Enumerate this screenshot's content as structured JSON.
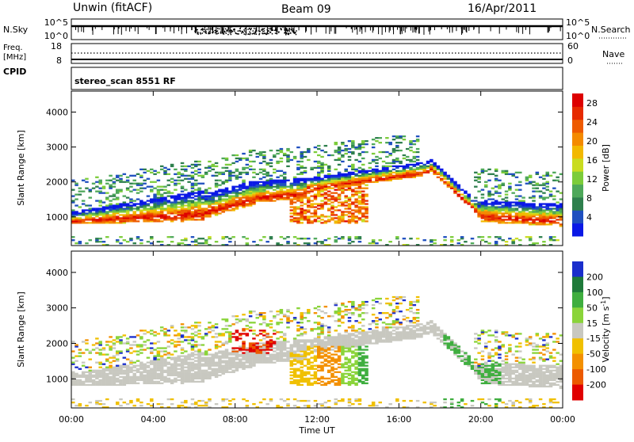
{
  "header": {
    "station": "Unwin (fitACF)",
    "beam": "Beam 09",
    "date": "16/Apr/2011"
  },
  "panels": {
    "nsky": {
      "label": "N.Sky",
      "left_ticks": [
        "10^5",
        "10^0"
      ],
      "right_ticks": [
        "10^5",
        "10^0"
      ],
      "right_label": "N.Search"
    },
    "freq": {
      "label_line1": "Freq.",
      "label_line2": "[MHz]",
      "left_ticks": [
        "18",
        "8"
      ],
      "right_ticks": [
        "60",
        "0"
      ],
      "right_label": "Nave"
    },
    "cpid": {
      "label": "CPID",
      "value": "stereo_scan 8551 RF"
    }
  },
  "chart_data": [
    {
      "type": "heatmap",
      "name": "power",
      "xlabel": "",
      "ylabel": "Slant Range [km]",
      "x_ticks": [],
      "y_ticks": [
        "1000",
        "2000",
        "3000",
        "4000"
      ],
      "ylim": [
        180,
        4600
      ],
      "xlim_hours": [
        0,
        24
      ],
      "colorbar": {
        "label": "Power [dB]",
        "ticks": [
          "4",
          "8",
          "12",
          "16",
          "20",
          "24",
          "28"
        ],
        "range": [
          0,
          30
        ],
        "colors": [
          "#0a18e6",
          "#1f4fbf",
          "#2e7f4d",
          "#4ea85a",
          "#7ccc3a",
          "#c9dc20",
          "#f2b800",
          "#f48a00",
          "#ee5a00",
          "#e62a00",
          "#dd0000"
        ]
      }
    },
    {
      "type": "heatmap",
      "name": "velocity",
      "xlabel": "Time UT",
      "ylabel": "Slant Range [km]",
      "x_ticks": [
        "00:00",
        "04:00",
        "08:00",
        "12:00",
        "16:00",
        "20:00",
        "00:00"
      ],
      "y_ticks": [
        "1000",
        "2000",
        "3000",
        "4000"
      ],
      "ylim": [
        180,
        4600
      ],
      "xlim_hours": [
        0,
        24
      ],
      "colorbar": {
        "label": "Velocity [m s^-1]",
        "ticks": [
          "200",
          "100",
          "50",
          "15",
          "-15",
          "-50",
          "-100",
          "-200"
        ],
        "colors": [
          "#1a2ecc",
          "#1f7a3a",
          "#3fae3f",
          "#8ad43a",
          "#c8c8c0",
          "#f0c000",
          "#f39000",
          "#ec5a00",
          "#e00000"
        ]
      }
    }
  ]
}
